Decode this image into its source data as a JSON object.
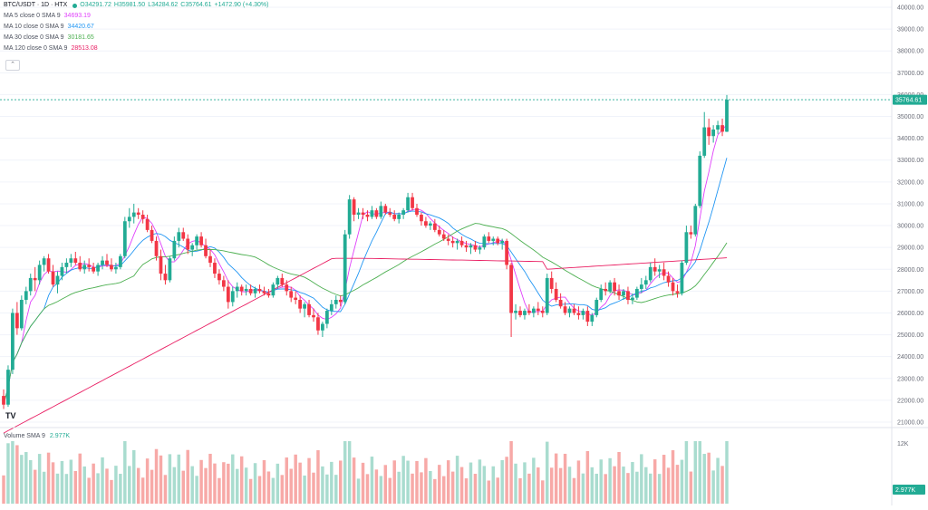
{
  "symbol": {
    "title": "BTC/USDT · 1D · HTX",
    "ohlc": {
      "open": "O34291.72",
      "high": "H35981.50",
      "low": "L34284.62",
      "close": "C35764.61",
      "change": "+1472.90 (+4.30%)"
    }
  },
  "indicators": [
    {
      "label": "MA 5 close 0 SMA 9",
      "value": "34693.19",
      "color": "#e040fb"
    },
    {
      "label": "MA 10 close 0 SMA 9",
      "value": "34420.67",
      "color": "#2196f3"
    },
    {
      "label": "MA 30 close 0 SMA 9",
      "value": "30181.65",
      "color": "#4caf50"
    },
    {
      "label": "MA 120 close 0 SMA 9",
      "value": "28513.08",
      "color": "#e91e63"
    }
  ],
  "collapse_icon": "chevron-up-icon",
  "last_price_label": "35764.61",
  "price_axis": {
    "ticks": [
      "40000.00",
      "39000.00",
      "38000.00",
      "37000.00",
      "36000.00",
      "35000.00",
      "34000.00",
      "33000.00",
      "32000.00",
      "31000.00",
      "30000.00",
      "29000.00",
      "28000.00",
      "27000.00",
      "26000.00",
      "25000.00",
      "24000.00",
      "23000.00",
      "22000.00",
      "21000.00"
    ]
  },
  "volume": {
    "legend_label": "Volume SMA 9",
    "legend_value": "2.977K",
    "axis_top_label": "12K",
    "last_label": "2.977K"
  },
  "logo_text": "TV",
  "colors": {
    "up": "#22ab94",
    "down": "#f23645",
    "vol_up": "#a9dccf",
    "vol_down": "#f7a9a7",
    "last_price": "#22ab94"
  },
  "chart_data": {
    "type": "candlestick",
    "title": "BTC/USDT · 1D · HTX",
    "ylim": [
      21000,
      40000
    ],
    "y_unit": "USDT",
    "series": [
      {
        "name": "BTC/USDT",
        "description": "candles are [open, high, low, close]; visually approximated",
        "values": [
          [
            22200,
            22500,
            21600,
            21800
          ],
          [
            21800,
            23600,
            21700,
            23400
          ],
          [
            23400,
            26200,
            23200,
            26000
          ],
          [
            26000,
            26500,
            25000,
            25300
          ],
          [
            25300,
            26800,
            25200,
            26600
          ],
          [
            26600,
            27200,
            26400,
            27000
          ],
          [
            27000,
            27800,
            26800,
            27600
          ],
          [
            27600,
            28100,
            27000,
            27500
          ],
          [
            27500,
            28400,
            27300,
            28200
          ],
          [
            28200,
            28600,
            27900,
            28500
          ],
          [
            28500,
            28700,
            27800,
            27900
          ],
          [
            27900,
            28200,
            27200,
            27300
          ],
          [
            27300,
            27900,
            26900,
            27700
          ],
          [
            27700,
            28300,
            27500,
            28100
          ],
          [
            28100,
            28500,
            27800,
            28300
          ],
          [
            28300,
            28700,
            28100,
            28500
          ],
          [
            28500,
            28800,
            28200,
            28300
          ],
          [
            28300,
            28600,
            27900,
            28000
          ],
          [
            28000,
            28400,
            27800,
            28200
          ],
          [
            28200,
            28500,
            27900,
            28100
          ],
          [
            28100,
            28300,
            27800,
            27900
          ],
          [
            27900,
            28300,
            27700,
            28200
          ],
          [
            28200,
            28600,
            28000,
            28400
          ],
          [
            28400,
            28700,
            28100,
            28200
          ],
          [
            28200,
            28500,
            27900,
            28000
          ],
          [
            28000,
            28300,
            27800,
            28100
          ],
          [
            28100,
            28700,
            28000,
            28600
          ],
          [
            28600,
            30400,
            28500,
            30200
          ],
          [
            30200,
            30800,
            29900,
            30400
          ],
          [
            30400,
            31000,
            30100,
            30600
          ],
          [
            30600,
            30800,
            30300,
            30500
          ],
          [
            30500,
            30700,
            30100,
            30300
          ],
          [
            30300,
            30500,
            29700,
            29800
          ],
          [
            29800,
            30000,
            29200,
            29300
          ],
          [
            29300,
            29500,
            28400,
            28600
          ],
          [
            28600,
            28900,
            27500,
            27800
          ],
          [
            27800,
            28200,
            27300,
            27500
          ],
          [
            27500,
            28600,
            27400,
            28500
          ],
          [
            28500,
            29500,
            28400,
            29300
          ],
          [
            29300,
            29900,
            29000,
            29700
          ],
          [
            29700,
            29900,
            29300,
            29400
          ],
          [
            29400,
            29600,
            28700,
            28900
          ],
          [
            28900,
            29200,
            28600,
            29100
          ],
          [
            29100,
            29600,
            28900,
            29500
          ],
          [
            29500,
            29700,
            29000,
            29100
          ],
          [
            29100,
            29400,
            28500,
            28600
          ],
          [
            28600,
            28900,
            28100,
            28300
          ],
          [
            28300,
            28500,
            27600,
            27800
          ],
          [
            27800,
            28000,
            27300,
            27500
          ],
          [
            27500,
            27700,
            27000,
            27200
          ],
          [
            27200,
            27500,
            26200,
            26500
          ],
          [
            26500,
            27200,
            26300,
            27000
          ],
          [
            27000,
            27400,
            26700,
            27200
          ],
          [
            27200,
            27300,
            26800,
            27000
          ],
          [
            27000,
            27300,
            26800,
            27100
          ],
          [
            27100,
            27300,
            26800,
            26900
          ],
          [
            26900,
            27200,
            26700,
            27100
          ],
          [
            27100,
            27300,
            26900,
            27000
          ],
          [
            27000,
            27200,
            26800,
            26900
          ],
          [
            26900,
            27100,
            26700,
            26800
          ],
          [
            26800,
            27400,
            26700,
            27300
          ],
          [
            27300,
            27700,
            27100,
            27600
          ],
          [
            27600,
            27800,
            27200,
            27300
          ],
          [
            27300,
            27500,
            26800,
            27000
          ],
          [
            27000,
            27200,
            26500,
            26700
          ],
          [
            26700,
            27000,
            26400,
            26600
          ],
          [
            26600,
            26800,
            26000,
            26200
          ],
          [
            26200,
            26500,
            25800,
            26400
          ],
          [
            26400,
            26600,
            25800,
            25900
          ],
          [
            25900,
            26200,
            25600,
            25800
          ],
          [
            25800,
            26000,
            25000,
            25200
          ],
          [
            25200,
            25600,
            24900,
            25500
          ],
          [
            25500,
            26200,
            25300,
            26100
          ],
          [
            26100,
            26600,
            25900,
            26400
          ],
          [
            26400,
            26800,
            26200,
            26600
          ],
          [
            26600,
            26800,
            26300,
            26500
          ],
          [
            26500,
            29800,
            26400,
            29600
          ],
          [
            29600,
            31400,
            29400,
            31200
          ],
          [
            31200,
            31300,
            30200,
            30500
          ],
          [
            30500,
            30800,
            30300,
            30600
          ],
          [
            30600,
            30800,
            30300,
            30500
          ],
          [
            30500,
            30700,
            30200,
            30400
          ],
          [
            30400,
            30900,
            30300,
            30700
          ],
          [
            30700,
            30800,
            30300,
            30400
          ],
          [
            30400,
            31100,
            30300,
            30900
          ],
          [
            30900,
            31000,
            30500,
            30600
          ],
          [
            30600,
            30800,
            30400,
            30500
          ],
          [
            30500,
            30700,
            30200,
            30300
          ],
          [
            30300,
            30600,
            30100,
            30500
          ],
          [
            30500,
            30800,
            30300,
            30700
          ],
          [
            30700,
            31500,
            30600,
            31300
          ],
          [
            31300,
            31500,
            30700,
            30800
          ],
          [
            30800,
            31000,
            30400,
            30500
          ],
          [
            30500,
            30600,
            30000,
            30200
          ],
          [
            30200,
            30400,
            29900,
            30000
          ],
          [
            30000,
            30200,
            29800,
            30100
          ],
          [
            30100,
            30300,
            29700,
            29800
          ],
          [
            29800,
            30000,
            29500,
            29600
          ],
          [
            29600,
            29800,
            29300,
            29400
          ],
          [
            29400,
            29600,
            29100,
            29300
          ],
          [
            29300,
            29500,
            29000,
            29200
          ],
          [
            29200,
            29400,
            28900,
            29300
          ],
          [
            29300,
            29500,
            29000,
            29100
          ],
          [
            29100,
            29300,
            28800,
            29000
          ],
          [
            29000,
            29200,
            28700,
            29100
          ],
          [
            29100,
            29300,
            28800,
            28900
          ],
          [
            28900,
            29100,
            28700,
            29000
          ],
          [
            29000,
            29600,
            28900,
            29500
          ],
          [
            29500,
            29700,
            29200,
            29300
          ],
          [
            29300,
            29500,
            29100,
            29400
          ],
          [
            29400,
            29500,
            29100,
            29200
          ],
          [
            29200,
            29400,
            28900,
            29300
          ],
          [
            29300,
            29400,
            28000,
            28200
          ],
          [
            28200,
            28300,
            24900,
            26000
          ],
          [
            26000,
            26400,
            25700,
            26100
          ],
          [
            26100,
            26300,
            25800,
            25900
          ],
          [
            25900,
            26200,
            25700,
            26100
          ],
          [
            26100,
            26400,
            25900,
            26000
          ],
          [
            26000,
            26300,
            25800,
            26200
          ],
          [
            26200,
            26500,
            25900,
            26100
          ],
          [
            26100,
            26300,
            25800,
            26000
          ],
          [
            26000,
            27800,
            25900,
            27600
          ],
          [
            27600,
            27900,
            26900,
            27100
          ],
          [
            27100,
            27400,
            26500,
            26600
          ],
          [
            26600,
            26900,
            26200,
            26300
          ],
          [
            26300,
            26500,
            25900,
            26000
          ],
          [
            26000,
            26300,
            25800,
            26200
          ],
          [
            26200,
            26400,
            25900,
            26000
          ],
          [
            26000,
            26300,
            25700,
            25900
          ],
          [
            25900,
            26200,
            25700,
            26100
          ],
          [
            26100,
            26300,
            25400,
            25600
          ],
          [
            25600,
            26000,
            25400,
            25900
          ],
          [
            25900,
            26700,
            25800,
            26600
          ],
          [
            26600,
            27300,
            26500,
            27100
          ],
          [
            27100,
            27400,
            26800,
            27000
          ],
          [
            27000,
            27500,
            26900,
            27400
          ],
          [
            27400,
            27600,
            26800,
            27000
          ],
          [
            27000,
            27300,
            26600,
            26800
          ],
          [
            26800,
            27100,
            26600,
            27000
          ],
          [
            27000,
            27200,
            26400,
            26600
          ],
          [
            26600,
            26900,
            26400,
            26700
          ],
          [
            26700,
            27200,
            26600,
            27100
          ],
          [
            27100,
            27600,
            26900,
            27300
          ],
          [
            27300,
            27700,
            27100,
            27500
          ],
          [
            27500,
            28300,
            27400,
            28100
          ],
          [
            28100,
            28500,
            27700,
            27900
          ],
          [
            27900,
            28200,
            27600,
            28000
          ],
          [
            28000,
            28300,
            27500,
            27700
          ],
          [
            27700,
            27900,
            27200,
            27400
          ],
          [
            27400,
            27600,
            26800,
            27000
          ],
          [
            27000,
            27300,
            26700,
            26900
          ],
          [
            26900,
            28400,
            26800,
            28300
          ],
          [
            28300,
            30000,
            28200,
            29700
          ],
          [
            29700,
            30000,
            29400,
            29600
          ],
          [
            29600,
            31000,
            29500,
            30900
          ],
          [
            30900,
            33400,
            30800,
            33200
          ],
          [
            33200,
            35200,
            33100,
            34500
          ],
          [
            34500,
            34900,
            33700,
            34100
          ],
          [
            34100,
            34600,
            33800,
            34400
          ],
          [
            34400,
            34800,
            34200,
            34600
          ],
          [
            34600,
            34900,
            34100,
            34300
          ],
          [
            34300,
            35981,
            34285,
            35765
          ]
        ]
      },
      {
        "name": "MA 5 close 0 SMA 9",
        "description": "moving average (approx)",
        "values": "derived"
      },
      {
        "name": "MA 10 close 0 SMA 9",
        "description": "moving average (approx)",
        "values": "derived"
      },
      {
        "name": "MA 30 close 0 SMA 9",
        "description": "moving average (approx)",
        "values": "derived"
      },
      {
        "name": "MA 120 close 0 SMA 9",
        "description": "moving average (approx)",
        "values": "derived"
      }
    ],
    "volume_ylim": [
      0,
      12000
    ]
  }
}
